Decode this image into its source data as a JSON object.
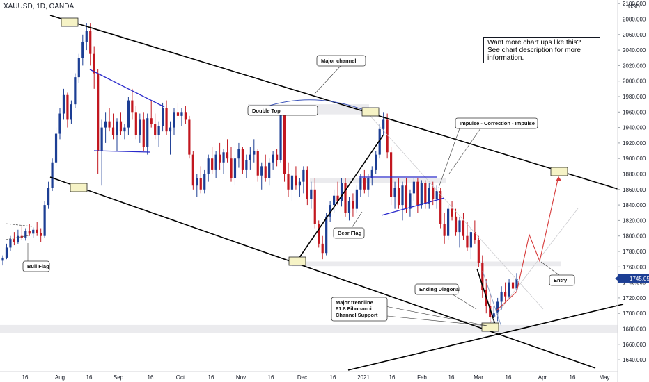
{
  "header": {
    "symbol": "XAUUSD, 1D, OANDA",
    "currency": "USD"
  },
  "note": {
    "lines": [
      "Want more chart ups like this?",
      "See chart description for more",
      "information."
    ]
  },
  "price_tag": "1745.054",
  "colors": {
    "up": "#1c3e94",
    "down": "#c2171f",
    "channel": "#000000",
    "triangle": "#2a2acb",
    "projection": "#d63a3a"
  },
  "chart_data": {
    "type": "candlestick",
    "symbol": "XAUUSD",
    "timeframe": "1D",
    "source": "OANDA",
    "y_ticks": [
      1640,
      1660,
      1680,
      1700,
      1720,
      1740,
      1760,
      1780,
      1800,
      1820,
      1840,
      1860,
      1880,
      1900,
      1920,
      1940,
      1960,
      1980,
      2000,
      2020,
      2040,
      2060,
      2080,
      2100
    ],
    "y_tick_labels": [
      "1640.000",
      "1660.000",
      "1680.000",
      "1700.000",
      "1720.000",
      "1740.000",
      "1760.000",
      "1780.000",
      "1800.000",
      "1820.000",
      "1840.000",
      "1860.000",
      "1880.000",
      "1900.000",
      "1920.000",
      "1940.000",
      "1960.000",
      "1980.000",
      "2000.000",
      "2020.000",
      "2040.000",
      "2060.000",
      "2080.000",
      "2100.000"
    ],
    "ylim": [
      1620,
      2110
    ],
    "x_tick_labels": [
      "16",
      "Aug",
      "16",
      "Sep",
      "16",
      "Oct",
      "16",
      "Nov",
      "16",
      "Dec",
      "16",
      "2021",
      "16",
      "Feb",
      "16",
      "Mar",
      "16",
      "Apr",
      "16",
      "May"
    ],
    "last_price": 1745.054,
    "annotations": [
      "Major channel",
      "Double Top",
      "Impulse - Correction - Impulse",
      "Bull Flag",
      "Bear Flag",
      "Ending Diagonal",
      "Major trendline\n61.8 Fibonacci\nChannel Support",
      "Entry"
    ],
    "annotation_lines": [
      [
        "Major trendline",
        "61.8 Fibonacci",
        "Channel Support"
      ]
    ],
    "candles_ohlc_approx": [
      [
        1768,
        1775,
        1762,
        1772
      ],
      [
        1772,
        1790,
        1770,
        1785
      ],
      [
        1785,
        1800,
        1780,
        1796
      ],
      [
        1796,
        1805,
        1788,
        1792
      ],
      [
        1792,
        1808,
        1790,
        1800
      ],
      [
        1800,
        1812,
        1795,
        1798
      ],
      [
        1798,
        1810,
        1794,
        1806
      ],
      [
        1806,
        1815,
        1800,
        1803
      ],
      [
        1803,
        1811,
        1798,
        1808
      ],
      [
        1808,
        1818,
        1800,
        1804
      ],
      [
        1804,
        1810,
        1792,
        1800
      ],
      [
        1800,
        1845,
        1798,
        1840
      ],
      [
        1840,
        1870,
        1835,
        1862
      ],
      [
        1862,
        1900,
        1858,
        1895
      ],
      [
        1895,
        1940,
        1890,
        1932
      ],
      [
        1932,
        1965,
        1925,
        1958
      ],
      [
        1958,
        1990,
        1950,
        1982
      ],
      [
        1982,
        1985,
        1940,
        1950
      ],
      [
        1950,
        1975,
        1945,
        1970
      ],
      [
        1970,
        2010,
        1965,
        2005
      ],
      [
        2005,
        2035,
        1998,
        2030
      ],
      [
        2030,
        2060,
        2020,
        2050
      ],
      [
        2050,
        2075,
        2040,
        2065
      ],
      [
        2065,
        2075,
        2020,
        2035
      ],
      [
        2035,
        2045,
        1990,
        2010
      ],
      [
        2010,
        2015,
        1880,
        1910
      ],
      [
        1910,
        1950,
        1865,
        1940
      ],
      [
        1940,
        1960,
        1920,
        1948
      ],
      [
        1948,
        1965,
        1935,
        1940
      ],
      [
        1940,
        1958,
        1925,
        1930
      ],
      [
        1930,
        1952,
        1910,
        1948
      ],
      [
        1948,
        1960,
        1930,
        1935
      ],
      [
        1935,
        1945,
        1925,
        1940
      ],
      [
        1940,
        1980,
        1930,
        1975
      ],
      [
        1975,
        1990,
        1950,
        1960
      ],
      [
        1960,
        1968,
        1925,
        1930
      ],
      [
        1930,
        1958,
        1920,
        1950
      ],
      [
        1950,
        1960,
        1910,
        1915
      ],
      [
        1915,
        1958,
        1905,
        1952
      ],
      [
        1952,
        1975,
        1940,
        1945
      ],
      [
        1945,
        1958,
        1925,
        1930
      ],
      [
        1930,
        1948,
        1915,
        1942
      ],
      [
        1942,
        1972,
        1935,
        1965
      ],
      [
        1965,
        1975,
        1930,
        1935
      ],
      [
        1935,
        1948,
        1905,
        1940
      ],
      [
        1940,
        1965,
        1930,
        1960
      ],
      [
        1960,
        1972,
        1950,
        1955
      ],
      [
        1955,
        1965,
        1942,
        1960
      ],
      [
        1960,
        1968,
        1945,
        1950
      ],
      [
        1950,
        1955,
        1900,
        1905
      ],
      [
        1905,
        1910,
        1860,
        1865
      ],
      [
        1865,
        1880,
        1850,
        1875
      ],
      [
        1875,
        1890,
        1855,
        1860
      ],
      [
        1860,
        1885,
        1855,
        1880
      ],
      [
        1880,
        1905,
        1870,
        1900
      ],
      [
        1900,
        1915,
        1880,
        1885
      ],
      [
        1885,
        1910,
        1875,
        1905
      ],
      [
        1905,
        1920,
        1885,
        1895
      ],
      [
        1895,
        1912,
        1880,
        1908
      ],
      [
        1908,
        1925,
        1895,
        1900
      ],
      [
        1900,
        1915,
        1870,
        1875
      ],
      [
        1875,
        1905,
        1865,
        1900
      ],
      [
        1900,
        1920,
        1888,
        1912
      ],
      [
        1912,
        1915,
        1880,
        1885
      ],
      [
        1885,
        1905,
        1875,
        1898
      ],
      [
        1898,
        1915,
        1885,
        1905
      ],
      [
        1905,
        1925,
        1895,
        1910
      ],
      [
        1910,
        1912,
        1870,
        1878
      ],
      [
        1878,
        1895,
        1860,
        1890
      ],
      [
        1890,
        1905,
        1870,
        1875
      ],
      [
        1875,
        1900,
        1865,
        1895
      ],
      [
        1895,
        1910,
        1885,
        1905
      ],
      [
        1905,
        1912,
        1890,
        1898
      ],
      [
        1898,
        1965,
        1895,
        1960
      ],
      [
        1960,
        1968,
        1870,
        1880
      ],
      [
        1880,
        1895,
        1850,
        1860
      ],
      [
        1860,
        1885,
        1845,
        1878
      ],
      [
        1878,
        1890,
        1860,
        1865
      ],
      [
        1865,
        1875,
        1850,
        1870
      ],
      [
        1870,
        1890,
        1855,
        1885
      ],
      [
        1885,
        1890,
        1840,
        1848
      ],
      [
        1848,
        1870,
        1835,
        1860
      ],
      [
        1860,
        1875,
        1810,
        1815
      ],
      [
        1815,
        1820,
        1785,
        1790
      ],
      [
        1790,
        1800,
        1770,
        1778
      ],
      [
        1778,
        1830,
        1775,
        1825
      ],
      [
        1825,
        1845,
        1818,
        1840
      ],
      [
        1840,
        1860,
        1830,
        1852
      ],
      [
        1852,
        1870,
        1840,
        1845
      ],
      [
        1845,
        1875,
        1838,
        1868
      ],
      [
        1868,
        1875,
        1825,
        1830
      ],
      [
        1830,
        1850,
        1820,
        1845
      ],
      [
        1845,
        1855,
        1825,
        1835
      ],
      [
        1835,
        1865,
        1830,
        1860
      ],
      [
        1860,
        1880,
        1850,
        1875
      ],
      [
        1875,
        1885,
        1855,
        1860
      ],
      [
        1860,
        1880,
        1850,
        1875
      ],
      [
        1875,
        1890,
        1865,
        1885
      ],
      [
        1885,
        1910,
        1880,
        1905
      ],
      [
        1905,
        1945,
        1900,
        1938
      ],
      [
        1938,
        1960,
        1930,
        1950
      ],
      [
        1950,
        1958,
        1900,
        1908
      ],
      [
        1908,
        1915,
        1840,
        1850
      ],
      [
        1850,
        1870,
        1835,
        1862
      ],
      [
        1862,
        1875,
        1835,
        1840
      ],
      [
        1840,
        1870,
        1820,
        1865
      ],
      [
        1865,
        1875,
        1830,
        1835
      ],
      [
        1835,
        1860,
        1825,
        1855
      ],
      [
        1855,
        1875,
        1845,
        1870
      ],
      [
        1870,
        1875,
        1830,
        1840
      ],
      [
        1840,
        1872,
        1835,
        1868
      ],
      [
        1868,
        1872,
        1835,
        1842
      ],
      [
        1842,
        1868,
        1835,
        1862
      ],
      [
        1862,
        1870,
        1840,
        1848
      ],
      [
        1848,
        1865,
        1835,
        1858
      ],
      [
        1858,
        1862,
        1810,
        1815
      ],
      [
        1815,
        1830,
        1790,
        1800
      ],
      [
        1800,
        1840,
        1795,
        1835
      ],
      [
        1835,
        1845,
        1820,
        1825
      ],
      [
        1825,
        1835,
        1800,
        1805
      ],
      [
        1805,
        1825,
        1785,
        1820
      ],
      [
        1820,
        1830,
        1795,
        1800
      ],
      [
        1800,
        1818,
        1780,
        1785
      ],
      [
        1785,
        1810,
        1770,
        1805
      ],
      [
        1805,
        1820,
        1790,
        1795
      ],
      [
        1795,
        1800,
        1760,
        1765
      ],
      [
        1765,
        1775,
        1720,
        1730
      ],
      [
        1730,
        1745,
        1700,
        1710
      ],
      [
        1710,
        1725,
        1685,
        1695
      ],
      [
        1695,
        1710,
        1680,
        1700
      ],
      [
        1700,
        1720,
        1690,
        1715
      ],
      [
        1715,
        1735,
        1705,
        1728
      ],
      [
        1728,
        1740,
        1715,
        1722
      ],
      [
        1722,
        1745,
        1718,
        1740
      ],
      [
        1740,
        1748,
        1725,
        1732
      ],
      [
        1732,
        1752,
        1728,
        1745
      ]
    ]
  }
}
